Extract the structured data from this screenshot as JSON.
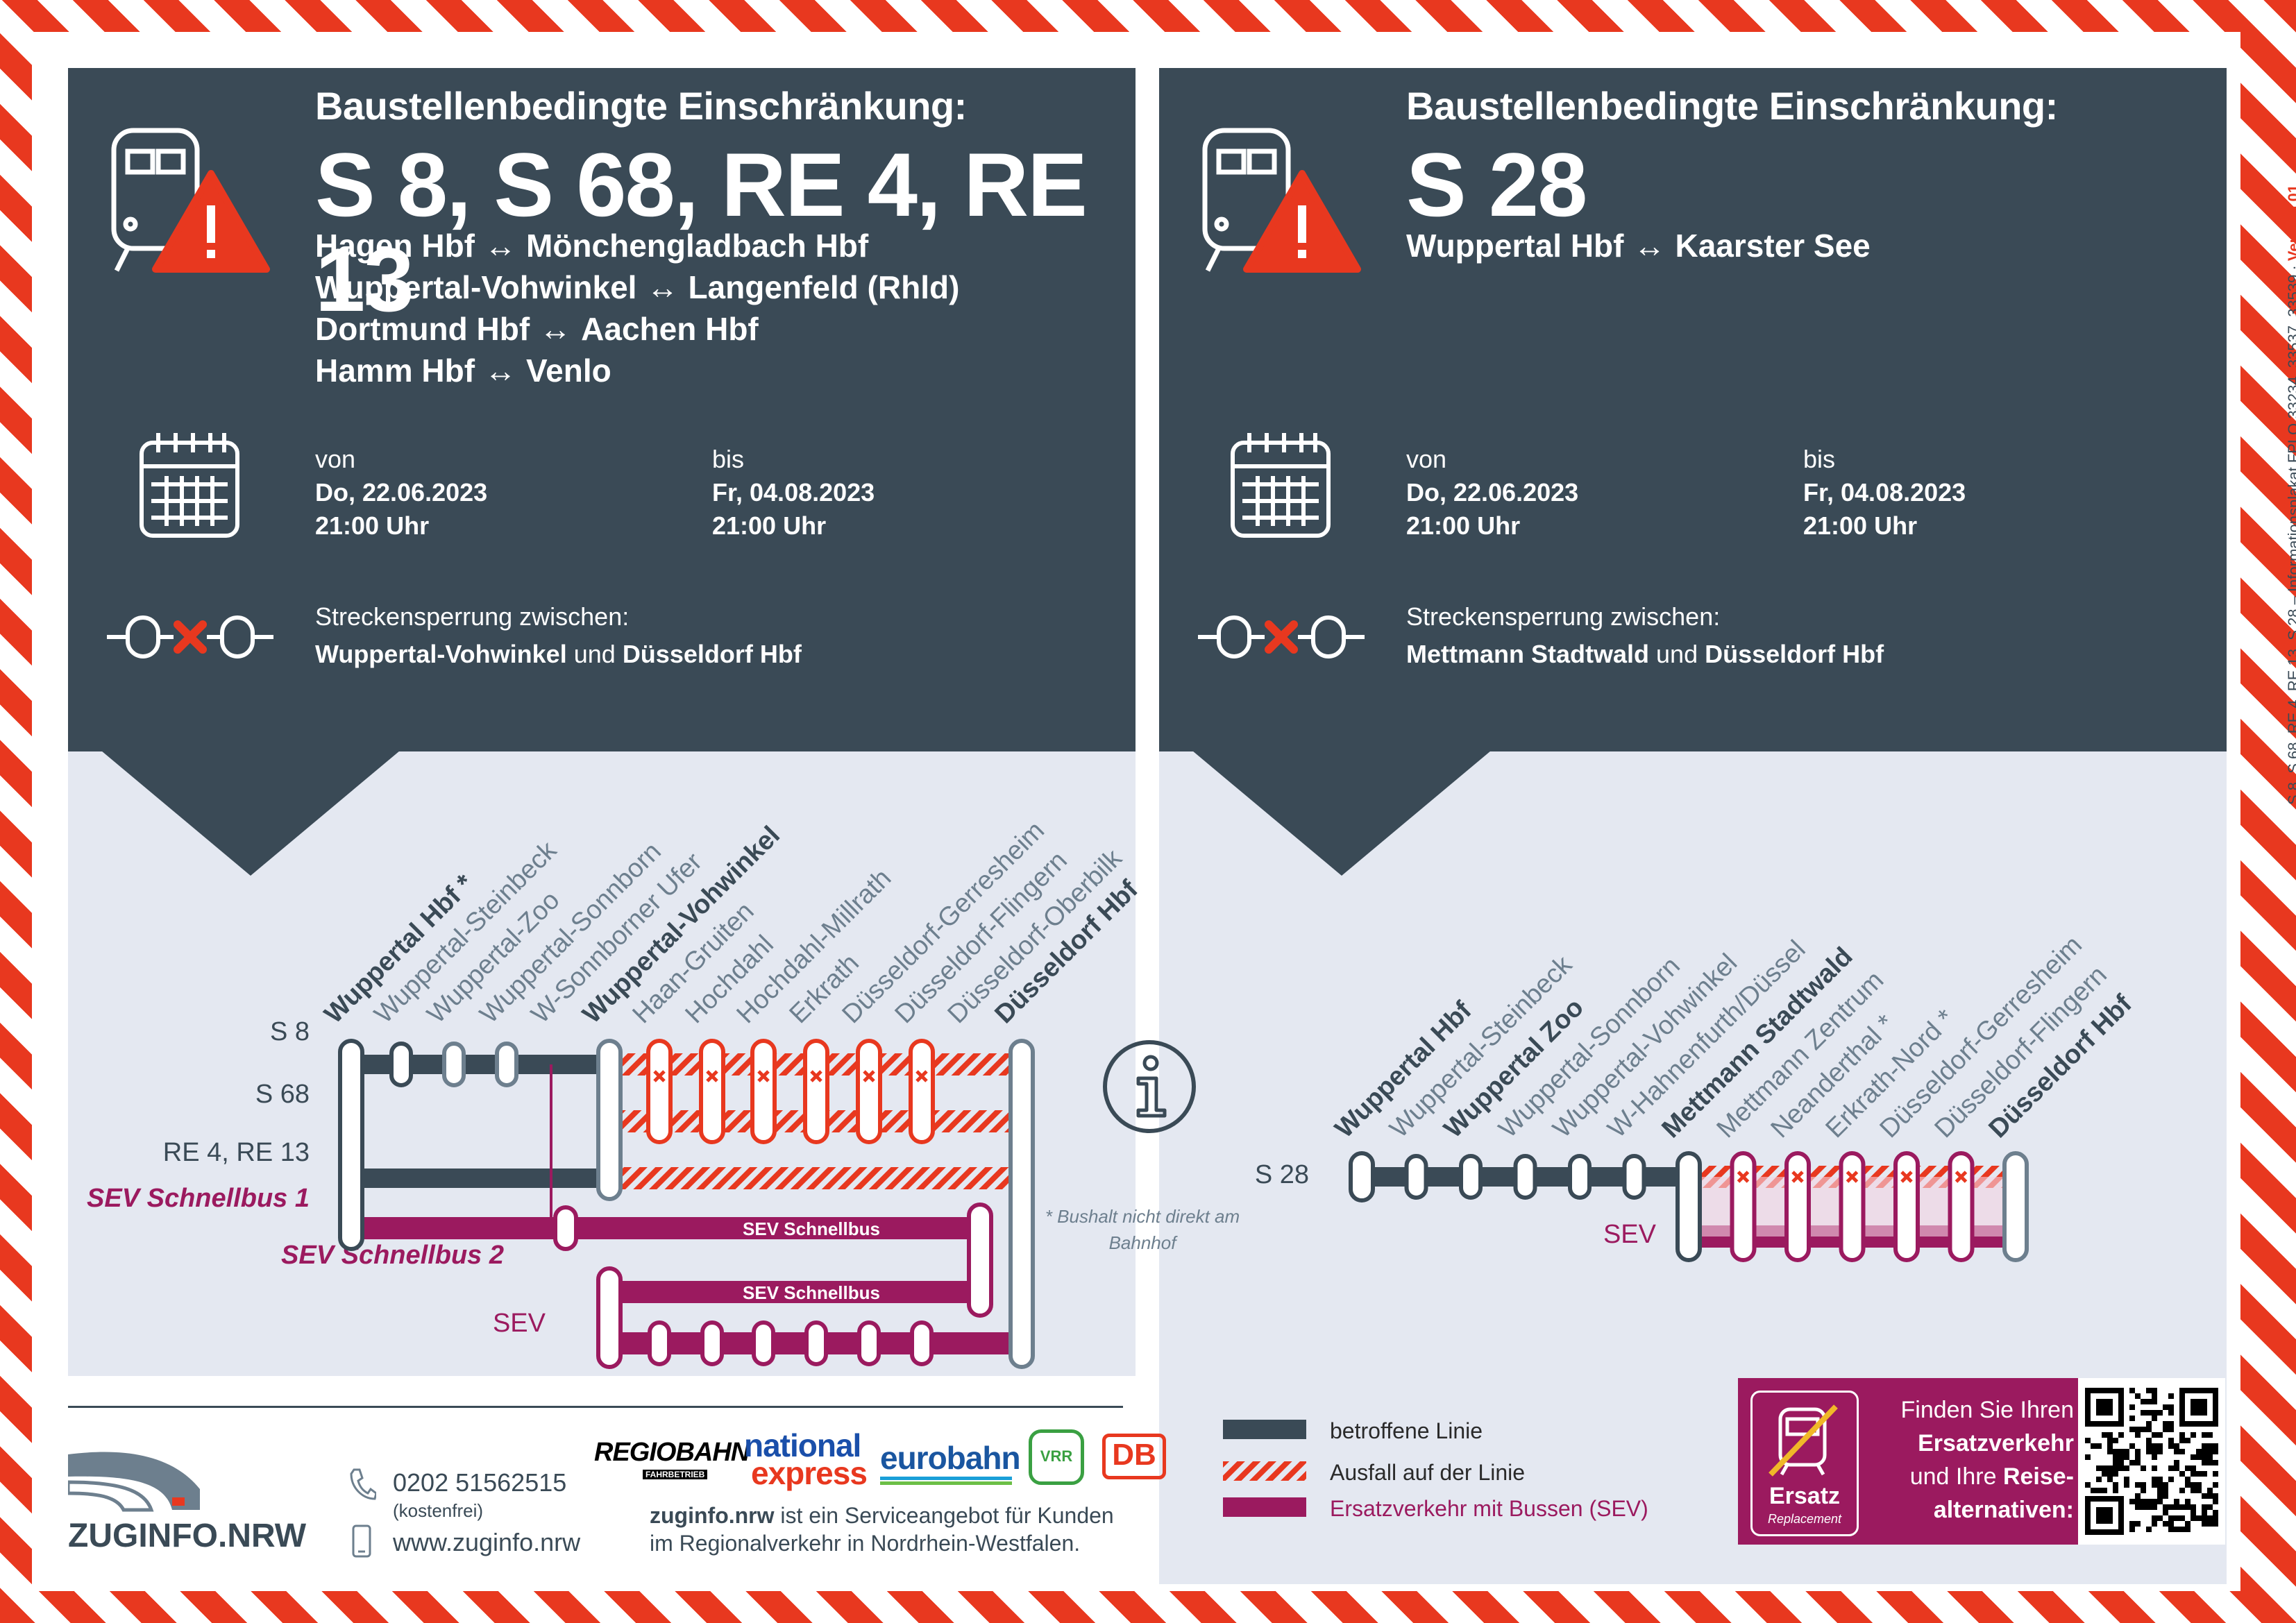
{
  "left_panel": {
    "eyebrow": "Baustellenbedingte Einschränkung:",
    "lines": "S 8, S 68, RE 4, RE 13",
    "routes": [
      {
        "from": "Hagen Hbf",
        "arrow": "↔",
        "to": "Mönchengladbach Hbf"
      },
      {
        "from": "Wuppertal-Vohwinkel",
        "arrow": "↔",
        "to": "Langenfeld (Rhld)"
      },
      {
        "from": "Dortmund Hbf",
        "arrow": "↔",
        "to": "Aachen Hbf"
      },
      {
        "from": "Hamm Hbf",
        "arrow": "↔",
        "to": "Venlo"
      }
    ],
    "von_label": "von",
    "von_date": "Do, 22.06.2023",
    "von_time": "21:00 Uhr",
    "bis_label": "bis",
    "bis_date": "Fr, 04.08.2023",
    "bis_time": "21:00 Uhr",
    "sperrung_label": "Streckensperrung zwischen:",
    "sperrung_from": "Wuppertal-Vohwinkel",
    "sperrung_und": "und",
    "sperrung_to": "Düsseldorf Hbf"
  },
  "right_panel": {
    "eyebrow": "Baustellenbedingte Einschränkung:",
    "lines": "S 28",
    "routes": [
      {
        "from": "Wuppertal Hbf",
        "arrow": "↔",
        "to": "Kaarster See"
      }
    ],
    "von_label": "von",
    "von_date": "Do, 22.06.2023",
    "von_time": "21:00 Uhr",
    "bis_label": "bis",
    "bis_date": "Fr, 04.08.2023",
    "bis_time": "21:00 Uhr",
    "sperrung_label": "Streckensperrung zwischen:",
    "sperrung_from": "Mettmann Stadtwald",
    "sperrung_und": "und",
    "sperrung_to": "Düsseldorf Hbf"
  },
  "left_diagram": {
    "stations": [
      {
        "name": "Wuppertal Hbf *",
        "bold": true
      },
      {
        "name": "Wuppertal-Steinbeck",
        "bold": false
      },
      {
        "name": "Wuppertal-Zoo",
        "bold": false
      },
      {
        "name": "Wuppertal-Sonnborn",
        "bold": false
      },
      {
        "name": "W-Sonnborner Ufer",
        "bold": false
      },
      {
        "name": "Wuppertal-Vohwinkel",
        "bold": true
      },
      {
        "name": "Haan-Gruiten",
        "bold": false
      },
      {
        "name": "Hochdahl",
        "bold": false
      },
      {
        "name": "Hochdahl-Millrath",
        "bold": false
      },
      {
        "name": "Erkrath",
        "bold": false
      },
      {
        "name": "Düsseldorf-Gerresheim",
        "bold": false
      },
      {
        "name": "Düsseldorf-Flingern",
        "bold": false
      },
      {
        "name": "Düsseldorf-Oberbilk",
        "bold": false
      },
      {
        "name": "Düsseldorf Hbf",
        "bold": true
      }
    ],
    "rows": [
      "S 8",
      "S 68",
      "RE 4, RE 13",
      "SEV Schnellbus 1",
      "SEV Schnellbus 2",
      "SEV"
    ],
    "bus_label": "SEV Schnellbus",
    "footnote": "* Bushalt nicht direkt am Bahnhof"
  },
  "right_diagram": {
    "stations": [
      {
        "name": "Wuppertal Hbf",
        "bold": true
      },
      {
        "name": "Wuppertal-Steinbeck",
        "bold": false
      },
      {
        "name": "Wuppertal Zoo",
        "bold": true
      },
      {
        "name": "Wuppertal-Sonnborn",
        "bold": false
      },
      {
        "name": "Wuppertal-Vohwinkel",
        "bold": false
      },
      {
        "name": "W-Hahnenfurth/Düssel",
        "bold": false
      },
      {
        "name": "Mettmann Stadtwald",
        "bold": true
      },
      {
        "name": "Mettmann Zentrum",
        "bold": false
      },
      {
        "name": "Neanderthal *",
        "bold": false
      },
      {
        "name": "Erkrath-Nord *",
        "bold": false
      },
      {
        "name": "Düsseldorf-Gerresheim",
        "bold": false
      },
      {
        "name": "Düsseldorf-Flingern",
        "bold": false
      },
      {
        "name": "Düsseldorf Hbf",
        "bold": true
      }
    ],
    "rows": [
      "S 28",
      "SEV"
    ]
  },
  "legend": {
    "affected": "betroffene Linie",
    "cancelled": "Ausfall auf der Linie",
    "replacement": "Ersatzverkehr mit Bussen (SEV)"
  },
  "ersatz_box": {
    "badge_title": "Ersatz",
    "badge_sub": "Replacement",
    "line1": "Finden Sie Ihren",
    "line2": "Ersatzverkehr",
    "line3a": "und Ihre",
    "line3b": "Reise-",
    "line4": "alternativen:"
  },
  "footer": {
    "brand": "ZUGINFO.NRW",
    "phone": "0202 51562515",
    "phone_note": "(kostenfrei)",
    "web": "www.zuginfo.nrw",
    "logos": [
      "REGIOBAHN",
      "FAHRBETRIEB",
      "national",
      "express",
      "eurobahn",
      "VRR",
      "DB"
    ],
    "service_bold": "zuginfo.nrw",
    "service_rest": " ist ein Serviceangebot für Kunden",
    "service_line2": "im Regionalverkehr in Nordrhein-Westfalen."
  },
  "vertical_note": "S 8, S 68, RE 4, RE 13, S 28 – Informationsplakat FPLO 33234, 33537, 33539 · ",
  "vertical_version": "Version 01",
  "colors": {
    "dark": "#3a4a56",
    "red": "#e8381f",
    "purple": "#9b1a5f",
    "light_bg": "#e4e8f1"
  }
}
